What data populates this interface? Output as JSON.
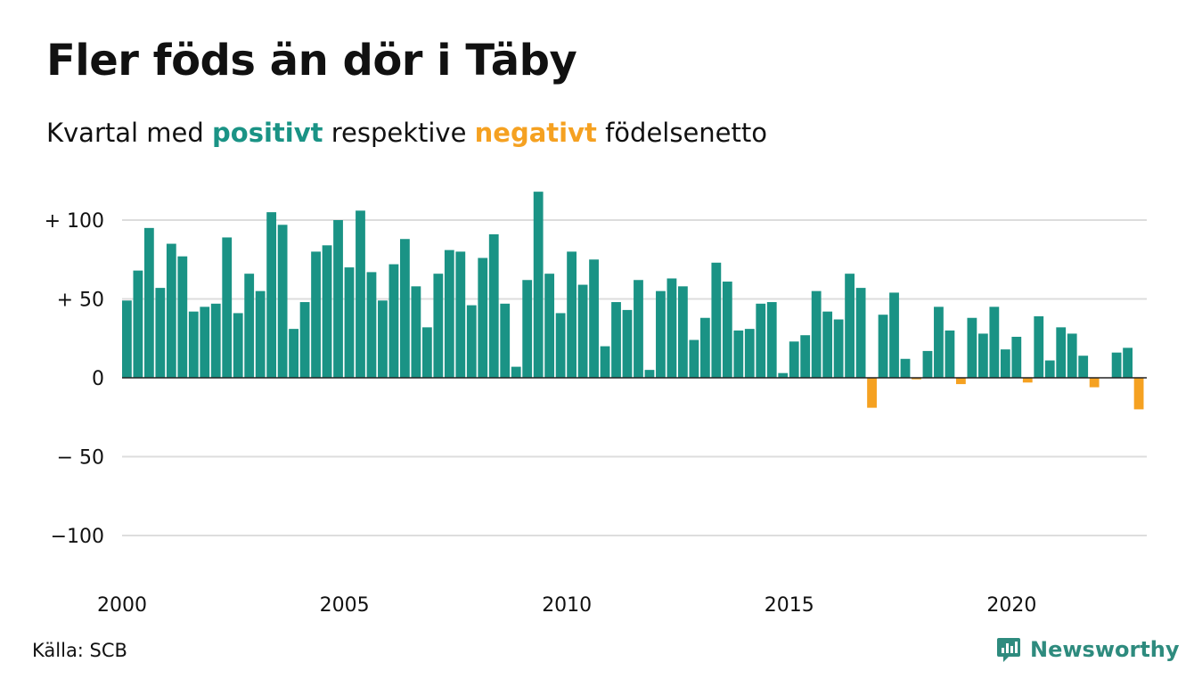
{
  "title": "Fler föds än dör i Täby",
  "subtitle": {
    "prefix": "Kvartal med ",
    "positive": "positivt",
    "middle": " respektive ",
    "negative": "negativt",
    "suffix": " födelsenetto"
  },
  "colors": {
    "positive": "#1a9385",
    "negative": "#f5a121",
    "grid": "#dddddd",
    "axis": "#222222"
  },
  "source": "Källa: SCB",
  "brand": {
    "name": "Newsworthy",
    "icon": "bar-chart-logo-icon"
  },
  "chart_data": {
    "type": "bar",
    "title": "Fler föds än dör i Täby",
    "xlabel": "",
    "ylabel": "",
    "ylim": [
      -125,
      125
    ],
    "yticks": [
      {
        "value": 100,
        "label": "+ 100"
      },
      {
        "value": 50,
        "label": "+  50"
      },
      {
        "value": 0,
        "label": "0"
      },
      {
        "value": -50,
        "label": "− 50"
      },
      {
        "value": -100,
        "label": "−100"
      }
    ],
    "xticks": [
      "2000",
      "2005",
      "2010",
      "2015",
      "2020"
    ],
    "grid": true,
    "x_start_year": 2000,
    "values": [
      49,
      68,
      95,
      57,
      85,
      77,
      42,
      45,
      47,
      89,
      41,
      66,
      55,
      105,
      97,
      31,
      48,
      80,
      84,
      100,
      70,
      106,
      67,
      49,
      72,
      88,
      58,
      32,
      66,
      81,
      80,
      46,
      76,
      91,
      47,
      7,
      62,
      118,
      66,
      41,
      80,
      59,
      75,
      20,
      48,
      43,
      62,
      5,
      55,
      63,
      58,
      24,
      38,
      73,
      61,
      30,
      31,
      47,
      48,
      3,
      23,
      27,
      55,
      42,
      37,
      66,
      57,
      -19,
      40,
      54,
      12,
      -1,
      17,
      45,
      30,
      -4,
      38,
      28,
      45,
      18,
      26,
      -3,
      39,
      11,
      32,
      28,
      14,
      -6,
      0,
      16,
      19,
      -20
    ]
  }
}
